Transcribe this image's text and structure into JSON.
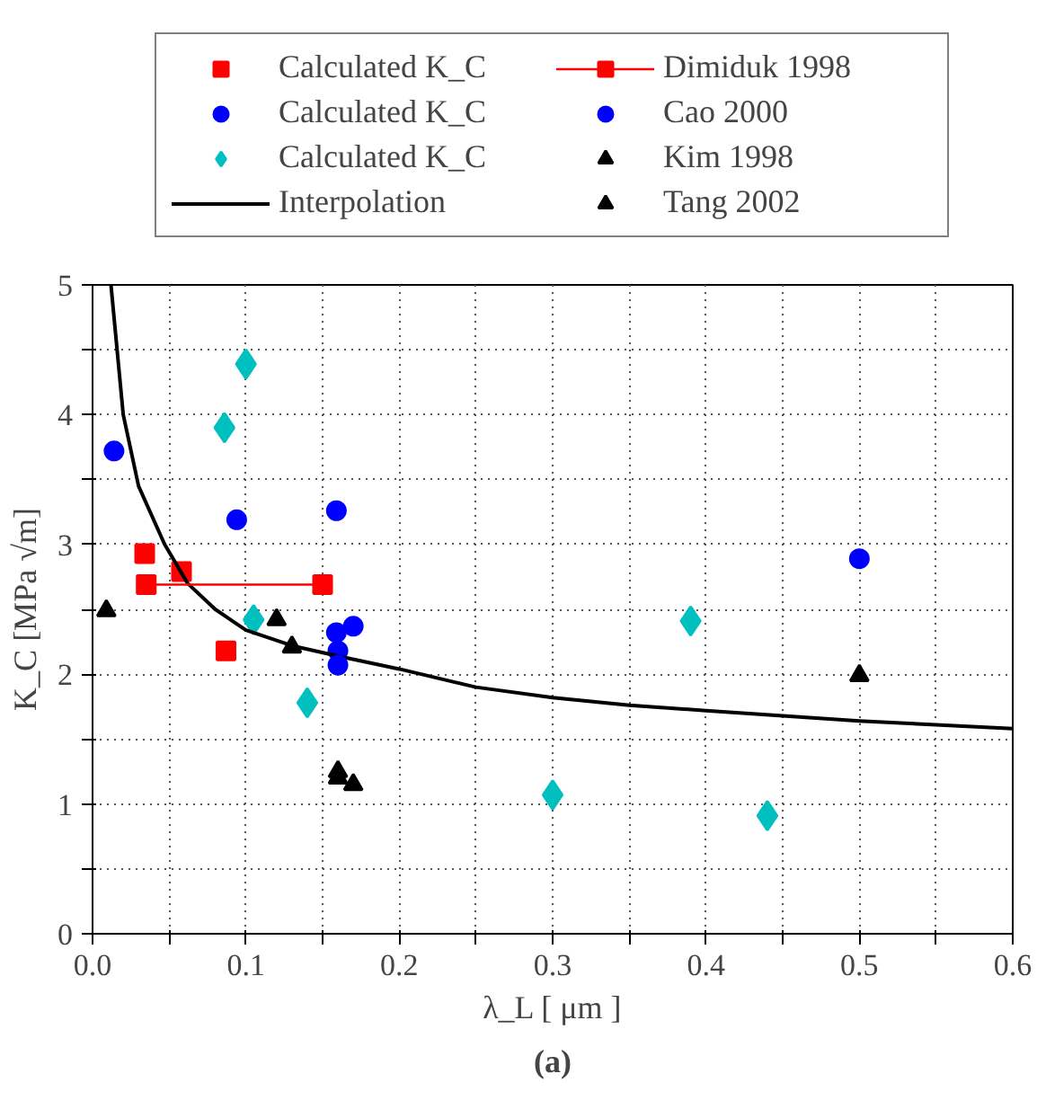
{
  "chart_data": {
    "type": "scatter",
    "xlabel": "λ_L [ μm ]",
    "ylabel": "K_C [MPa √m]",
    "annotations": [
      "(a)"
    ],
    "xlim": [
      0,
      0.6
    ],
    "ylim": [
      0,
      5
    ],
    "xticks": [
      {
        "value": 0,
        "label": "0.0"
      },
      {
        "value": 0.05,
        "label": null
      },
      {
        "value": 0.1,
        "label": "0.1"
      },
      {
        "value": 0.15,
        "label": null
      },
      {
        "value": 0.2,
        "label": "0.2"
      },
      {
        "value": 0.25,
        "label": null
      },
      {
        "value": 0.3,
        "label": "0.3"
      },
      {
        "value": 0.35,
        "label": null
      },
      {
        "value": 0.4,
        "label": "0.4"
      },
      {
        "value": 0.45,
        "label": null
      },
      {
        "value": 0.5,
        "label": "0.5"
      },
      {
        "value": 0.55,
        "label": null
      },
      {
        "value": 0.6,
        "label": "0.6"
      }
    ],
    "yticks": [
      0,
      {
        "value": 0.5,
        "label": null
      },
      1,
      {
        "value": 1.5,
        "label": null
      },
      2,
      {
        "value": 2.5,
        "label": null
      },
      3,
      {
        "value": 3.5,
        "label": null
      },
      4,
      {
        "value": 4.5,
        "label": null
      },
      5
    ],
    "grid": true,
    "legend": "top",
    "series": [
      {
        "name": "Calculated K_C",
        "marker": "square",
        "color": "#ff0000",
        "x": [
          0.034,
          0.058,
          0.087
        ],
        "values": [
          2.93,
          2.79,
          2.18
        ]
      },
      {
        "name": "Calculated K_C",
        "marker": "circle",
        "color": "#0000ff",
        "x": [
          0.014,
          0.094,
          0.159,
          0.159,
          0.17,
          0.16,
          0.5
        ],
        "values": [
          3.72,
          3.19,
          3.26,
          2.32,
          2.37,
          2.18,
          2.89
        ]
      },
      {
        "name": "Calculated K_C",
        "marker": "diamond",
        "color": "#00bfbf",
        "x": [
          0.1,
          0.086,
          0.105,
          0.14,
          0.3,
          0.44,
          0.39
        ],
        "values": [
          4.39,
          3.9,
          2.42,
          1.78,
          1.07,
          0.91,
          2.41
        ]
      },
      {
        "name": "Interpolation",
        "type": "line",
        "marker": "none",
        "color": "#000000",
        "x": [
          0.012,
          0.02,
          0.03,
          0.047,
          0.062,
          0.08,
          0.1,
          0.13,
          0.16,
          0.2,
          0.25,
          0.3,
          0.35,
          0.4,
          0.45,
          0.5,
          0.55,
          0.6
        ],
        "values": [
          5,
          4,
          3.45,
          3,
          2.7,
          2.5,
          2.34,
          2.22,
          2.14,
          2.04,
          1.9,
          1.82,
          1.76,
          1.72,
          1.68,
          1.64,
          1.61,
          1.58
        ]
      },
      {
        "name": "Dimiduk 1998",
        "type": "line",
        "marker": "square",
        "color": "#ff0000",
        "x": [
          0.035,
          0.15
        ],
        "values": [
          2.69,
          2.69
        ]
      },
      {
        "name": "Cao 2000",
        "marker": "circle",
        "color": "#0000ff",
        "x": [
          0.16
        ],
        "values": [
          2.07
        ]
      },
      {
        "name": "Kim 1998",
        "marker": "triangle",
        "color": "#000000",
        "x": [
          0.009,
          0.5
        ],
        "values": [
          2.49,
          1.99
        ]
      },
      {
        "name": "Tang 2002",
        "marker": "triangle",
        "color": "#000000",
        "x": [
          0.12,
          0.13,
          0.16,
          0.16,
          0.17
        ],
        "values": [
          2.42,
          2.21,
          1.25,
          1.2,
          1.15
        ]
      }
    ]
  }
}
